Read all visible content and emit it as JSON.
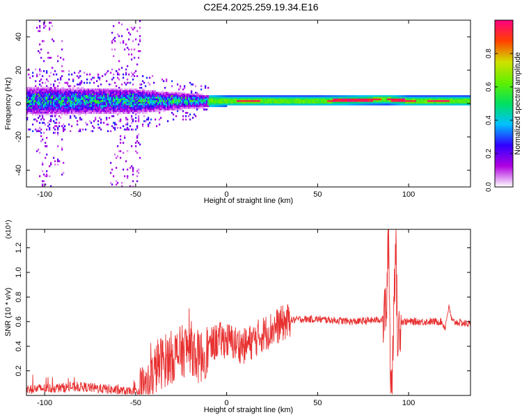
{
  "chart_data": [
    {
      "type": "heatmap",
      "title": "C2E4.2025.259.19.34.E16",
      "xlabel": "Height of straight line (km)",
      "ylabel": "Frequency (Hz)",
      "xlim": [
        -110,
        134
      ],
      "ylim": [
        -50,
        50
      ],
      "xticks": [
        -100,
        -50,
        0,
        50,
        100
      ],
      "xtick_labels": [
        "-100",
        "-50",
        "0",
        "50",
        "100"
      ],
      "yticks": [
        -40,
        -20,
        0,
        20,
        40
      ],
      "ytick_labels": [
        "-40",
        "-20",
        "0",
        "20",
        "40"
      ],
      "colorbar": {
        "label": "Normalized spectral amplitude",
        "range": [
          0,
          1
        ],
        "ticks": [
          0.0,
          0.2,
          0.4,
          0.6,
          0.8
        ],
        "tick_labels": [
          "0.0",
          "0.2",
          "0.4",
          "0.6",
          "0.8"
        ],
        "colors": [
          "#ffffff",
          "#b000e0",
          "#3000ff",
          "#00c0ff",
          "#00e060",
          "#60f000",
          "#d0e000",
          "#ff4000",
          "#ff0080"
        ]
      },
      "description_points": {
        "band_center_hz": [
          [
            -110,
            2
          ],
          [
            -60,
            2
          ],
          [
            -30,
            2
          ],
          [
            0,
            2
          ],
          [
            50,
            2
          ],
          [
            88,
            3
          ],
          [
            100,
            2
          ],
          [
            134,
            2
          ]
        ],
        "band_halfwidth_hz": [
          [
            -110,
            9
          ],
          [
            -50,
            8
          ],
          [
            -20,
            5
          ],
          [
            0,
            3
          ],
          [
            134,
            3
          ]
        ],
        "noise_columns_km": [
          [
            -105,
            -90
          ],
          [
            -65,
            -48
          ]
        ]
      }
    },
    {
      "type": "line",
      "xlabel": "Height of straight line (km)",
      "ylabel": "SNR (10 * v/v)",
      "yscale_label": "(x10⁴)",
      "xlim": [
        -110,
        134
      ],
      "ylim": [
        0,
        1.35
      ],
      "xticks": [
        -100,
        -50,
        0,
        50,
        100
      ],
      "xtick_labels": [
        "-100",
        "-50",
        "0",
        "50",
        "100"
      ],
      "yticks": [
        0.2,
        0.4,
        0.6,
        0.8,
        1.0,
        1.2
      ],
      "ytick_labels": [
        "0.2",
        "0.4",
        "0.6",
        "0.8",
        "1.0",
        "1.2"
      ],
      "series": [
        {
          "name": "SNR",
          "color": "#e83030",
          "envelope_points": [
            [
              -110,
              0.05
            ],
            [
              -95,
              0.06
            ],
            [
              -80,
              0.07
            ],
            [
              -65,
              0.05
            ],
            [
              -55,
              0.03
            ],
            [
              -48,
              0.02
            ],
            [
              -42,
              0.1
            ],
            [
              -38,
              0.25
            ],
            [
              -32,
              0.3
            ],
            [
              -25,
              0.35
            ],
            [
              -20,
              0.4
            ],
            [
              -15,
              0.3
            ],
            [
              -10,
              0.38
            ],
            [
              -5,
              0.45
            ],
            [
              0,
              0.45
            ],
            [
              5,
              0.42
            ],
            [
              10,
              0.4
            ],
            [
              15,
              0.45
            ],
            [
              20,
              0.5
            ],
            [
              25,
              0.54
            ],
            [
              30,
              0.58
            ],
            [
              35,
              0.61
            ],
            [
              40,
              0.62
            ],
            [
              50,
              0.62
            ],
            [
              60,
              0.61
            ],
            [
              70,
              0.6
            ],
            [
              80,
              0.61
            ],
            [
              86,
              0.62
            ],
            [
              88,
              0.75
            ],
            [
              89,
              1.35
            ],
            [
              90,
              0.2
            ],
            [
              91,
              0.1
            ],
            [
              92,
              0.9
            ],
            [
              93,
              1.2
            ],
            [
              94,
              0.4
            ],
            [
              95,
              0.6
            ],
            [
              100,
              0.6
            ],
            [
              110,
              0.6
            ],
            [
              118,
              0.6
            ],
            [
              120,
              0.55
            ],
            [
              122,
              0.72
            ],
            [
              124,
              0.6
            ],
            [
              134,
              0.58
            ]
          ]
        }
      ]
    }
  ]
}
